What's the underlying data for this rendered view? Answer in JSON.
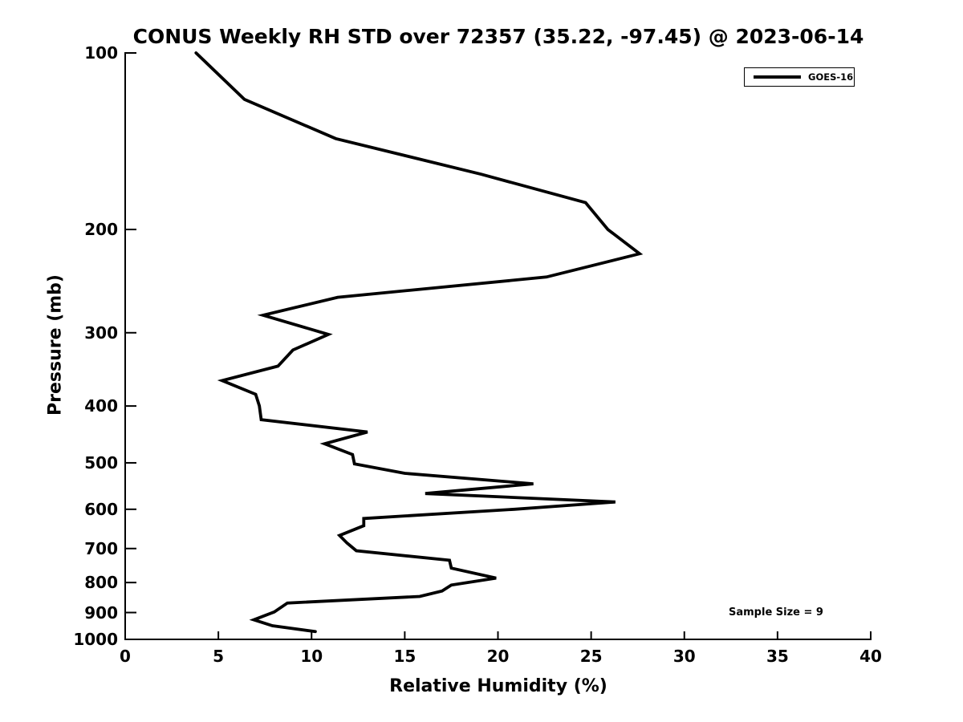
{
  "figure": {
    "background_color": "#ffffff",
    "foreground_color": "#000000"
  },
  "chart_data": {
    "type": "line",
    "title": "CONUS Weekly RH STD over 72357 (35.22, -97.45) @ 2023-06-14",
    "xlabel": "Relative Humidity (%)",
    "ylabel": "Pressure (mb)",
    "annotation": "Sample Size = 9",
    "x_scale": "linear",
    "y_scale": "log",
    "y_inverted": true,
    "xlim": [
      0,
      40
    ],
    "ylim": [
      100,
      1000
    ],
    "x_ticks": [
      0,
      5,
      10,
      15,
      20,
      25,
      30,
      35,
      40
    ],
    "y_ticks": [
      100,
      200,
      300,
      400,
      500,
      600,
      700,
      800,
      900,
      1000
    ],
    "grid": false,
    "legend": {
      "position": "upper right",
      "entries": [
        {
          "label": "GOES-16",
          "color": "#000000"
        }
      ]
    },
    "series": [
      {
        "name": "GOES-16",
        "color": "#000000",
        "pressure_mb": [
          100,
          120,
          140,
          161,
          180,
          200,
          220,
          241,
          261,
          280,
          302,
          321,
          342,
          362,
          382,
          400,
          422,
          443,
          464,
          484,
          502,
          521,
          543,
          564,
          583,
          600,
          622,
          640,
          665,
          685,
          706,
          733,
          756,
          786,
          808,
          827,
          845,
          867,
          898,
          926,
          948,
          970
        ],
        "rh_std_percent": [
          3.8,
          6.4,
          11.3,
          19.1,
          24.7,
          25.9,
          27.6,
          22.6,
          11.4,
          7.4,
          10.9,
          9.0,
          8.2,
          5.2,
          7.0,
          7.2,
          7.3,
          13.0,
          10.7,
          12.2,
          12.3,
          15.0,
          21.9,
          16.1,
          26.3,
          20.9,
          12.8,
          12.8,
          11.5,
          11.9,
          12.4,
          17.4,
          17.5,
          19.9,
          17.5,
          17.0,
          15.8,
          8.7,
          8.0,
          6.9,
          7.9,
          10.2
        ]
      }
    ]
  }
}
